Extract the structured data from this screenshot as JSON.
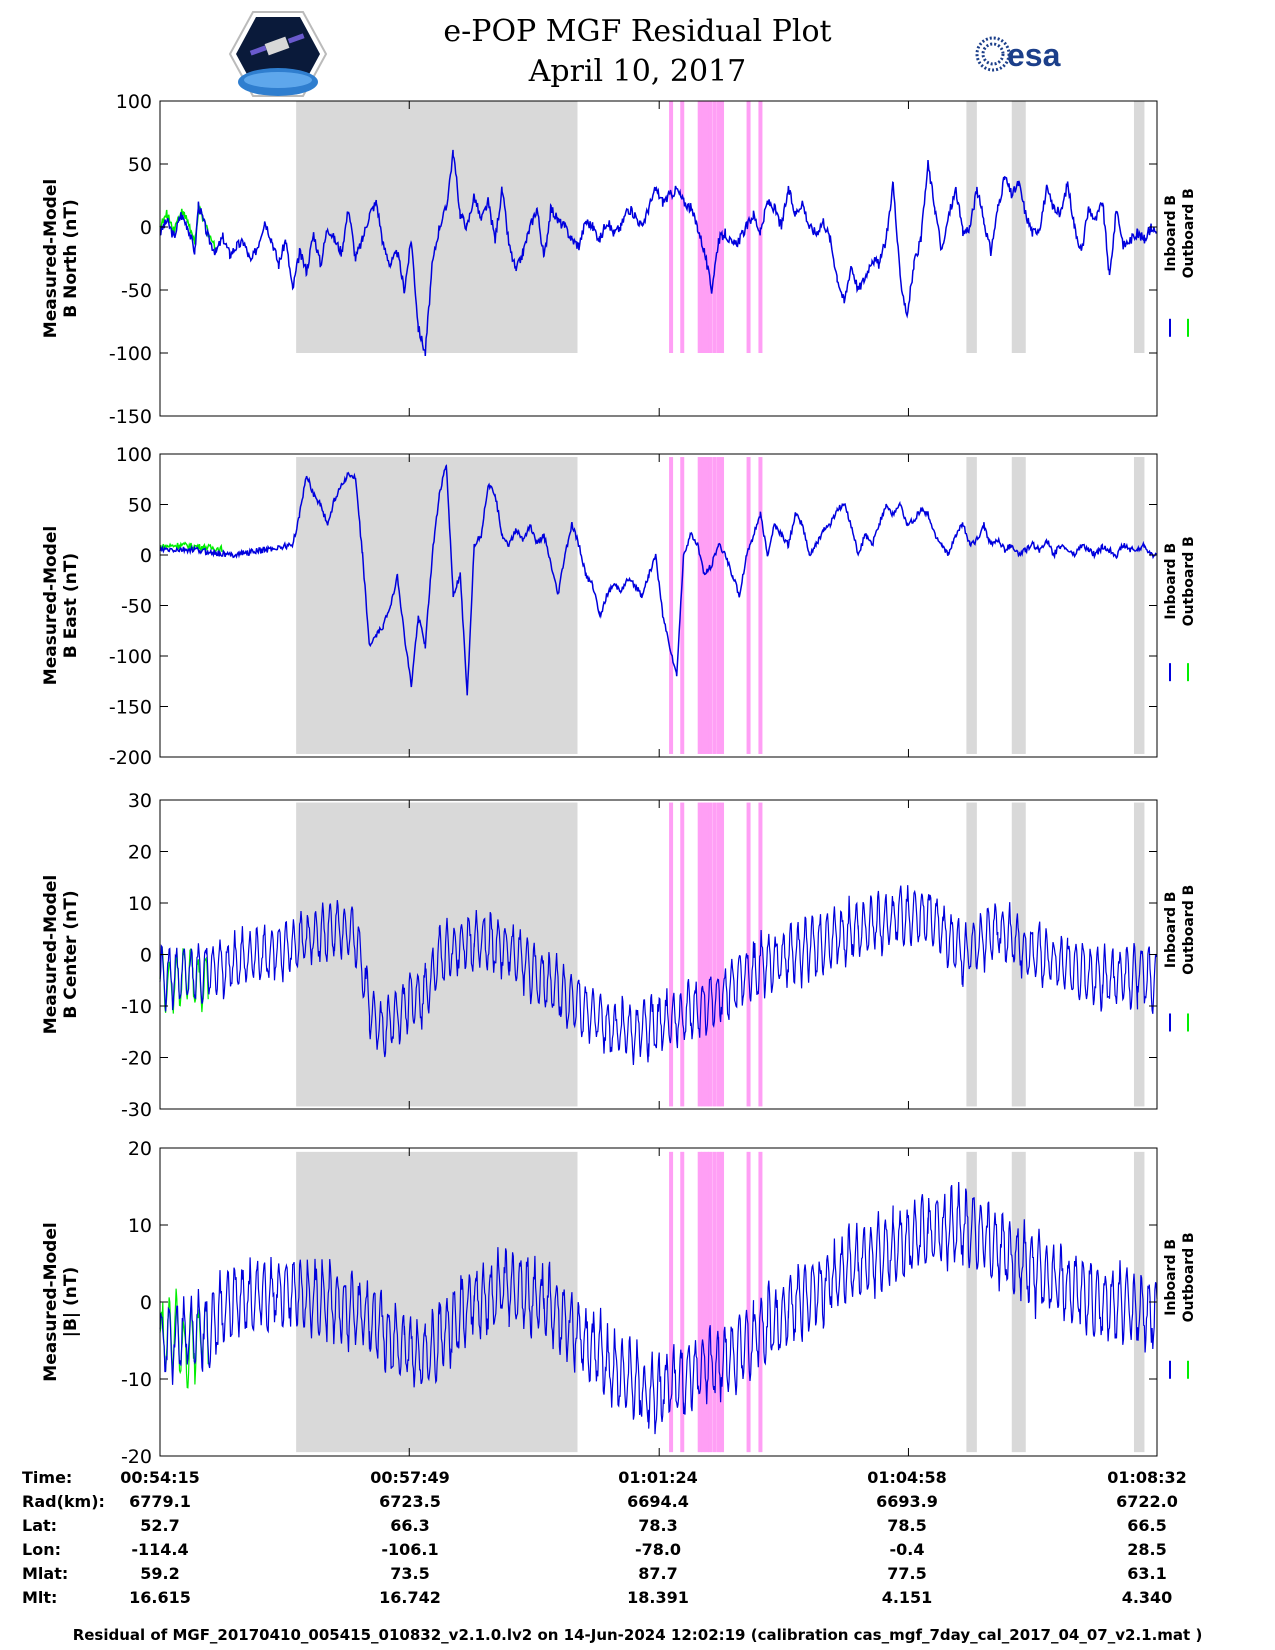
{
  "title": {
    "line1": "e-POP MGF Residual Plot",
    "line2": "April 10, 2017"
  },
  "logos": {
    "left": "cassiope-mission-logo",
    "right_text": "esa"
  },
  "colors": {
    "inboard": "#0000dd",
    "outboard": "#00ee00",
    "gray_band": "#d9d9d9",
    "pink_band": "#ff9ff5"
  },
  "chart_data": [
    {
      "type": "line",
      "ylabel_line1": "Measured-Model",
      "ylabel_line2": "B North (nT)",
      "ylim": [
        -150,
        100
      ],
      "yticks": [
        100,
        50,
        0,
        -50,
        -100,
        -150
      ],
      "ytick_labels": [
        "100",
        "50",
        "0",
        "-50",
        "-100",
        "-150"
      ],
      "band_range": [
        -100,
        100
      ],
      "legend": [
        "Inboard B",
        "Outboard B"
      ],
      "series": [
        {
          "name": "Inboard B",
          "color": "#0000dd",
          "x": [
            0,
            0.1,
            0.2,
            0.3,
            0.4,
            0.5,
            0.55,
            0.7,
            0.8,
            0.9,
            1.0,
            1.1,
            1.2,
            1.3,
            1.4,
            1.5,
            1.6,
            1.7,
            1.8,
            1.9,
            2.0,
            2.1,
            2.2,
            2.3,
            2.4,
            2.5,
            2.6,
            2.7,
            2.8,
            2.9,
            3.0,
            3.1,
            3.2,
            3.3,
            3.4,
            3.5,
            3.6,
            3.7,
            3.8,
            3.9,
            4.0,
            4.1,
            4.2,
            4.3,
            4.4,
            4.5,
            4.6,
            4.7,
            4.8,
            4.9,
            5.0,
            5.1,
            5.2,
            5.3,
            5.4,
            5.5,
            5.6,
            5.7,
            5.8,
            5.9,
            6.0,
            6.1,
            6.2,
            6.3,
            6.4,
            6.5,
            6.6,
            6.7,
            6.8,
            6.9,
            7.0,
            7.1,
            7.2,
            7.3,
            7.4,
            7.5,
            7.6,
            7.7,
            7.8,
            7.9,
            8.0,
            8.1,
            8.2,
            8.3,
            8.4,
            8.5,
            8.6,
            8.7,
            8.8,
            8.9,
            9.0,
            9.1,
            9.2,
            9.3,
            9.4,
            9.5,
            9.6,
            9.7,
            9.8,
            9.9,
            10.0,
            10.1,
            10.2,
            10.3,
            10.4,
            10.5,
            10.6,
            10.7,
            10.8,
            10.9,
            11.0,
            11.1,
            11.2,
            11.3,
            11.4,
            11.5,
            11.6,
            11.7,
            11.8,
            11.9,
            12.0,
            12.1,
            12.2,
            12.3,
            12.4,
            12.5,
            12.6,
            12.7,
            12.8,
            12.9,
            13.0,
            13.1,
            13.2,
            13.3,
            13.4,
            13.5,
            13.6,
            13.7,
            13.8,
            13.9,
            14.0,
            14.1,
            14.2,
            14.28
          ],
          "y": [
            -5,
            5,
            -8,
            10,
            0,
            -20,
            18,
            -10,
            -20,
            -8,
            -22,
            -15,
            -12,
            -28,
            -15,
            5,
            -10,
            -30,
            -10,
            -50,
            -20,
            -35,
            -5,
            -30,
            0,
            -10,
            -20,
            15,
            -25,
            -10,
            10,
            20,
            -15,
            -30,
            -20,
            -50,
            -10,
            -80,
            -100,
            -30,
            0,
            15,
            60,
            10,
            0,
            25,
            5,
            20,
            -10,
            30,
            -15,
            -35,
            -20,
            0,
            15,
            -25,
            15,
            5,
            0,
            -10,
            -15,
            5,
            0,
            -10,
            5,
            -5,
            0,
            15,
            10,
            0,
            15,
            30,
            20,
            25,
            30,
            20,
            15,
            0,
            -20,
            -50,
            -10,
            -5,
            -15,
            -10,
            0,
            10,
            -5,
            20,
            15,
            0,
            30,
            10,
            20,
            0,
            -5,
            5,
            -10,
            -40,
            -60,
            -30,
            -50,
            -40,
            -25,
            -30,
            -10,
            35,
            -40,
            -70,
            -30,
            -10,
            50,
            15,
            -20,
            10,
            30,
            -5,
            0,
            30,
            5,
            -20,
            15,
            40,
            25,
            35,
            10,
            -5,
            0,
            30,
            15,
            10,
            35,
            0,
            -20,
            15,
            5,
            20,
            -40,
            15,
            -15,
            -10,
            -5,
            -10,
            0,
            -5
          ]
        },
        {
          "name": "Outboard B",
          "color": "#00ee00",
          "x": [
            0,
            0.1,
            0.2,
            0.3,
            0.4,
            0.5,
            0.55,
            0.7,
            0.8
          ],
          "y": [
            0,
            10,
            -2,
            12,
            5,
            -15,
            15,
            -5,
            -18
          ]
        }
      ]
    },
    {
      "type": "line",
      "ylabel_line1": "Measured-Model",
      "ylabel_line2": "B East (nT)",
      "ylim": [
        -200,
        100
      ],
      "yticks": [
        100,
        50,
        0,
        -50,
        -100,
        -150,
        -200
      ],
      "ytick_labels": [
        "100",
        "50",
        "0",
        "-50",
        "-100",
        "-150",
        "-200"
      ],
      "band_range": [
        -197,
        97
      ],
      "legend": [
        "Inboard B",
        "Outboard B"
      ],
      "series": [
        {
          "name": "Inboard B",
          "color": "#0000dd",
          "x": [
            0,
            0.5,
            1.0,
            1.5,
            1.9,
            2.0,
            2.1,
            2.2,
            2.3,
            2.4,
            2.5,
            2.6,
            2.7,
            2.8,
            2.9,
            3.0,
            3.1,
            3.2,
            3.3,
            3.4,
            3.5,
            3.6,
            3.7,
            3.8,
            3.9,
            4.0,
            4.1,
            4.2,
            4.3,
            4.4,
            4.5,
            4.6,
            4.7,
            4.8,
            4.9,
            5.0,
            5.1,
            5.2,
            5.3,
            5.4,
            5.5,
            5.6,
            5.7,
            5.8,
            5.9,
            6.0,
            6.1,
            6.2,
            6.3,
            6.4,
            6.5,
            6.6,
            6.7,
            6.8,
            6.9,
            7.0,
            7.1,
            7.2,
            7.3,
            7.4,
            7.5,
            7.6,
            7.7,
            7.8,
            7.9,
            8.0,
            8.1,
            8.2,
            8.3,
            8.4,
            8.5,
            8.6,
            8.7,
            8.8,
            8.9,
            9.0,
            9.1,
            9.2,
            9.3,
            9.4,
            9.5,
            9.6,
            9.7,
            9.8,
            9.9,
            10.0,
            10.1,
            10.2,
            10.3,
            10.4,
            10.5,
            10.6,
            10.7,
            10.8,
            10.9,
            11.0,
            11.1,
            11.2,
            11.3,
            11.4,
            11.5,
            11.6,
            11.7,
            11.8,
            11.9,
            12.0,
            12.1,
            12.2,
            12.3,
            12.4,
            12.5,
            12.6,
            12.7,
            12.8,
            12.9,
            13.0,
            13.1,
            13.2,
            13.3,
            13.4,
            13.5,
            13.6,
            13.7,
            13.8,
            13.9,
            14.0,
            14.1,
            14.2,
            14.28
          ],
          "y": [
            5,
            5,
            0,
            5,
            10,
            40,
            80,
            60,
            50,
            30,
            55,
            70,
            80,
            75,
            0,
            -90,
            -80,
            -70,
            -50,
            -20,
            -80,
            -130,
            -60,
            -90,
            0,
            60,
            90,
            -40,
            -20,
            -140,
            10,
            20,
            70,
            60,
            20,
            10,
            25,
            15,
            30,
            10,
            20,
            -10,
            -40,
            0,
            30,
            10,
            -20,
            -30,
            -60,
            -40,
            -30,
            -35,
            -25,
            -30,
            -40,
            -20,
            0,
            -60,
            -90,
            -120,
            0,
            20,
            10,
            -20,
            -10,
            10,
            0,
            -20,
            -40,
            0,
            20,
            40,
            0,
            30,
            20,
            10,
            40,
            30,
            0,
            10,
            25,
            30,
            45,
            50,
            30,
            0,
            20,
            10,
            30,
            50,
            40,
            50,
            30,
            35,
            45,
            40,
            20,
            10,
            0,
            20,
            30,
            10,
            15,
            30,
            10,
            15,
            5,
            10,
            0,
            5,
            10,
            5,
            15,
            0,
            10,
            5,
            0,
            10,
            5,
            0,
            8,
            5,
            0,
            10,
            5,
            5,
            10,
            0,
            0
          ]
        },
        {
          "name": "Outboard B",
          "color": "#00ee00",
          "x": [
            0,
            0.3,
            0.6,
            0.9
          ],
          "y": [
            8,
            10,
            8,
            6
          ]
        }
      ]
    },
    {
      "type": "line",
      "ylabel_line1": "Measured-Model",
      "ylabel_line2": "B Center (nT)",
      "ylim": [
        -30,
        30
      ],
      "yticks": [
        30,
        20,
        10,
        0,
        -10,
        -20,
        -30
      ],
      "ytick_labels": [
        "30",
        "20",
        "10",
        "0",
        "-10",
        "-20",
        "-30"
      ],
      "band_range": [
        -29.5,
        29.5
      ],
      "legend": [
        "Inboard B",
        "Outboard B"
      ],
      "series": [
        {
          "name": "Inboard B",
          "color": "#0000dd",
          "x": [
            0,
            0.7,
            1.0,
            1.5,
            2.0,
            2.5,
            2.8,
            3.0,
            3.2,
            3.5,
            3.8,
            4.0,
            4.5,
            5.0,
            5.5,
            6.0,
            6.5,
            7.0,
            7.5,
            8.0,
            8.5,
            9.0,
            9.5,
            10.0,
            10.5,
            11.0,
            11.5,
            12.0,
            12.5,
            13.0,
            13.5,
            14.0,
            14.28
          ],
          "y": [
            -5,
            -3,
            -2,
            0,
            2,
            5,
            4,
            -10,
            -15,
            -10,
            -8,
            0,
            3,
            1,
            -5,
            -10,
            -15,
            -14,
            -12,
            -8,
            -3,
            0,
            2,
            5,
            7,
            8,
            0,
            5,
            0,
            -2,
            -5,
            -4,
            -5
          ]
        },
        {
          "name": "Outboard B",
          "color": "#00ee00",
          "x": [
            0,
            0.2,
            0.4,
            0.6,
            0.7
          ],
          "y": [
            -4,
            -6,
            -3,
            -6,
            -4
          ]
        }
      ]
    },
    {
      "type": "line",
      "ylabel_line1": "Measured-Model",
      "ylabel_line2": "|B| (nT)",
      "ylim": [
        -20,
        20
      ],
      "yticks": [
        20,
        10,
        0,
        -10,
        -20
      ],
      "ytick_labels": [
        "20",
        "10",
        "0",
        "-10",
        "-20"
      ],
      "band_range": [
        -19.5,
        19.5
      ],
      "legend": [
        "Inboard B",
        "Outboard B"
      ],
      "series": [
        {
          "name": "Inboard B",
          "color": "#0000dd",
          "x": [
            0,
            0.7,
            1.0,
            1.5,
            2.0,
            2.5,
            3.0,
            3.5,
            3.8,
            4.0,
            4.5,
            5.0,
            5.5,
            6.0,
            6.5,
            7.0,
            7.5,
            8.0,
            8.5,
            9.0,
            9.5,
            10.0,
            10.5,
            11.0,
            11.5,
            12.0,
            12.5,
            13.0,
            13.5,
            14.0,
            14.28
          ],
          "y": [
            -5,
            -4,
            0,
            1,
            1,
            0,
            -2,
            -6,
            -7,
            -5,
            0,
            2,
            0,
            -4,
            -9,
            -12,
            -10,
            -8,
            -5,
            -1,
            2,
            5,
            7,
            9,
            10,
            7,
            4,
            2,
            0,
            -1,
            -2
          ]
        },
        {
          "name": "Outboard B",
          "color": "#00ee00",
          "x": [
            0,
            0.2,
            0.4,
            0.6,
            0.7
          ],
          "y": [
            -5,
            -4,
            -6,
            -4,
            -5
          ]
        }
      ]
    }
  ],
  "time_axis": {
    "xlim": [
      0,
      14.28
    ],
    "gray_bands": [
      [
        1.95,
        5.98
      ],
      [
        11.55,
        11.7
      ],
      [
        12.2,
        12.4
      ],
      [
        13.95,
        14.1
      ]
    ],
    "pink_lines": [
      7.32,
      7.48,
      7.73,
      7.78,
      7.83,
      7.88,
      7.94,
      8.0,
      8.05,
      8.43,
      8.6
    ]
  },
  "info_table": {
    "rows": [
      {
        "label": "Time:",
        "values": [
          "00:54:15",
          "00:57:49",
          "01:01:24",
          "01:04:58",
          "01:08:32"
        ]
      },
      {
        "label": "Rad(km):",
        "values": [
          "6779.1",
          "6723.5",
          "6694.4",
          "6693.9",
          "6722.0"
        ]
      },
      {
        "label": "Lat:",
        "values": [
          "52.7",
          "66.3",
          "78.3",
          "78.5",
          "66.5"
        ]
      },
      {
        "label": "Lon:",
        "values": [
          "-114.4",
          "-106.1",
          "-78.0",
          "-0.4",
          "28.5"
        ]
      },
      {
        "label": "Mlat:",
        "values": [
          "59.2",
          "73.5",
          "87.7",
          "77.5",
          "63.1"
        ]
      },
      {
        "label": "Mlt:",
        "values": [
          "16.615",
          "16.742",
          "18.391",
          "4.151",
          "4.340"
        ]
      }
    ]
  },
  "footer": "Residual of MGF_20170410_005415_010832_v2.1.0.lv2 on 14-Jun-2024 12:02:19 (calibration cas_mgf_7day_cal_2017_04_07_v2.1.mat )"
}
